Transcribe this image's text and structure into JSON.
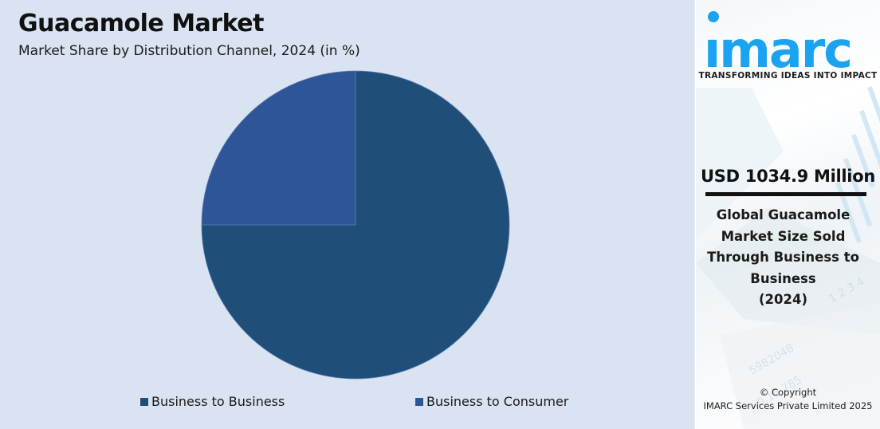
{
  "header": {
    "title": "Guacamole Market",
    "subtitle": "Market Share by Distribution Channel, 2024 (in %)"
  },
  "legend": [
    {
      "label": "Business to Business",
      "color": "#1f4e79"
    },
    {
      "label": "Business to Consumer",
      "color": "#2e5597"
    }
  ],
  "sidebar": {
    "logo_text": "imarc",
    "tagline": "TRANSFORMING IDEAS INTO IMPACT",
    "highlight_value": "USD 1034.9 Million",
    "description_lines": [
      "Global Guacamole",
      "Market Size Sold",
      "Through Business to",
      "Business",
      "(2024)"
    ],
    "copyright_line1": "© Copyright",
    "copyright_line2": "IMARC Services Private Limited 2025",
    "brand_color": "#1aa3f0"
  },
  "chart_data": {
    "type": "pie",
    "title": "Guacamole Market",
    "subtitle": "Market Share by Distribution Channel, 2024 (in %)",
    "categories": [
      "Business to Business",
      "Business to Consumer"
    ],
    "values": [
      75,
      25
    ],
    "colors": [
      "#1f4e79",
      "#2e5597"
    ],
    "start_angle": "12 o'clock, clockwise",
    "legend_position": "bottom",
    "data_labels": false
  }
}
